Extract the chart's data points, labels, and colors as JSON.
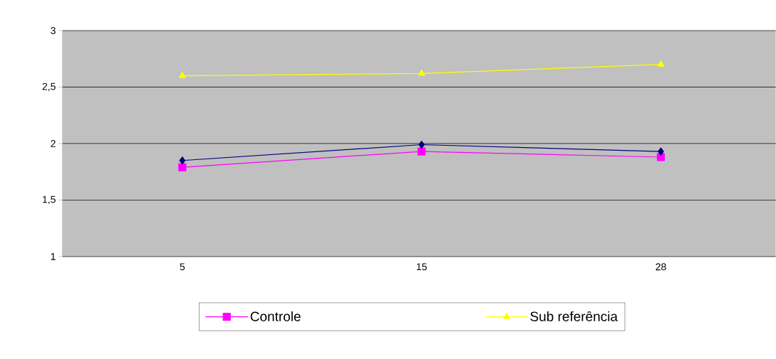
{
  "chart_data": {
    "type": "line",
    "categories": [
      "5",
      "15",
      "28"
    ],
    "series": [
      {
        "name": "Controle",
        "color": "#ff00ff",
        "marker": "square",
        "values": [
          1.79,
          1.93,
          1.88
        ]
      },
      {
        "color": "#000080",
        "marker": "diamond",
        "values": [
          1.85,
          1.99,
          1.93
        ]
      },
      {
        "name": "Sub referência",
        "color": "#ffff00",
        "marker": "triangle",
        "values": [
          2.6,
          2.62,
          2.7
        ]
      }
    ],
    "ylim": [
      1,
      3
    ],
    "yticks": [
      1,
      {
        "value": 1.5,
        "label": "1,5"
      },
      2,
      {
        "value": 2.5,
        "label": "2,5"
      },
      3
    ],
    "grid": "y",
    "legend": "bottom"
  }
}
